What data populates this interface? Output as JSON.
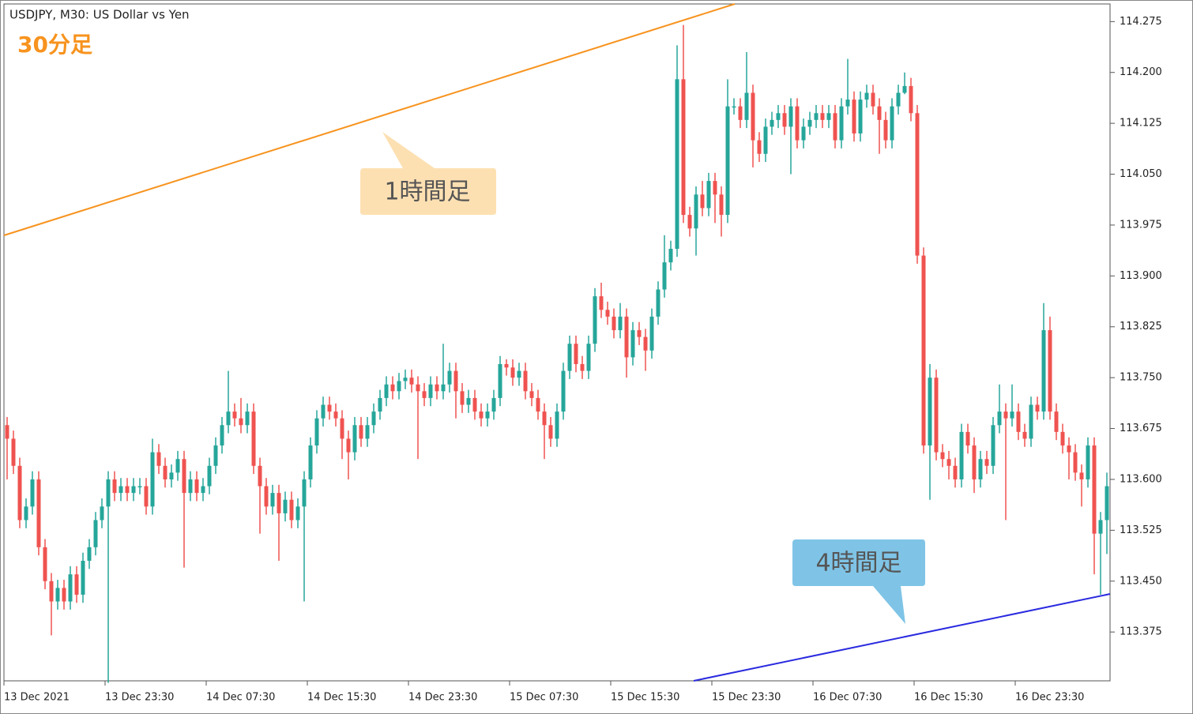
{
  "chart_data": {
    "type": "candlestick",
    "title": "USDJPY, M30:  US Dollar vs Yen",
    "subtitle": "30分足",
    "annotations": [
      "1時間足",
      "4時間足"
    ],
    "up_color": "#26a69a",
    "down_color": "#ef5350",
    "ylim": [
      113.303,
      114.301
    ],
    "yticks": [
      113.375,
      {
        "value": 113.45,
        "label": "113.450"
      },
      113.525,
      {
        "value": 113.6,
        "label": "113.600"
      },
      113.675,
      {
        "value": 113.75,
        "label": "113.750"
      },
      113.825,
      {
        "value": 113.9,
        "label": "113.900"
      },
      113.975,
      {
        "value": 114.05,
        "label": "114.050"
      },
      114.125,
      {
        "value": 114.2,
        "label": "114.200"
      },
      114.275
    ],
    "categories": [
      "13 Dec 2021",
      null,
      null,
      null,
      null,
      null,
      null,
      null,
      null,
      null,
      null,
      null,
      null,
      null,
      null,
      null,
      "13 Dec 23:30",
      null,
      null,
      null,
      null,
      null,
      null,
      null,
      null,
      null,
      null,
      null,
      null,
      null,
      null,
      null,
      "14 Dec 07:30",
      null,
      null,
      null,
      null,
      null,
      null,
      null,
      null,
      null,
      null,
      null,
      null,
      null,
      null,
      null,
      "14 Dec 15:30",
      null,
      null,
      null,
      null,
      null,
      null,
      null,
      null,
      null,
      null,
      null,
      null,
      null,
      null,
      null,
      "14 Dec 23:30",
      null,
      null,
      null,
      null,
      null,
      null,
      null,
      null,
      null,
      null,
      null,
      null,
      null,
      null,
      null,
      "15 Dec 07:30",
      null,
      null,
      null,
      null,
      null,
      null,
      null,
      null,
      null,
      null,
      null,
      null,
      null,
      null,
      null,
      "15 Dec 15:30",
      null,
      null,
      null,
      null,
      null,
      null,
      null,
      null,
      null,
      null,
      null,
      null,
      null,
      null,
      null,
      "15 Dec 23:30",
      null,
      null,
      null,
      null,
      null,
      null,
      null,
      null,
      null,
      null,
      null,
      null,
      null,
      null,
      null,
      "16 Dec 07:30",
      null,
      null,
      null,
      null,
      null,
      null,
      null,
      null,
      null,
      null,
      null,
      null,
      null,
      null,
      null,
      "16 Dec 15:30",
      null,
      null,
      null,
      null,
      null,
      null,
      null,
      null,
      null,
      null,
      null,
      null,
      null,
      null,
      null,
      "16 Dec 23:30",
      null,
      null,
      null,
      null,
      null,
      null,
      null,
      null,
      null,
      null,
      null,
      null,
      null,
      null
    ],
    "open": [
      113.68,
      113.66,
      113.62,
      113.54,
      113.56,
      113.6,
      113.5,
      113.45,
      113.42,
      113.44,
      113.42,
      113.46,
      113.43,
      113.48,
      113.5,
      113.54,
      113.56,
      113.6,
      113.58,
      113.59,
      113.58,
      113.59,
      113.59,
      113.56,
      113.64,
      113.62,
      113.6,
      113.61,
      113.63,
      113.58,
      113.6,
      113.58,
      113.59,
      113.62,
      113.65,
      113.68,
      113.7,
      113.69,
      113.68,
      113.7,
      113.62,
      113.59,
      113.56,
      113.58,
      113.55,
      113.57,
      113.54,
      113.56,
      113.6,
      113.65,
      113.69,
      113.71,
      113.7,
      113.69,
      113.66,
      113.64,
      113.68,
      113.66,
      113.68,
      113.7,
      113.72,
      113.74,
      113.73,
      113.745,
      113.75,
      113.74,
      113.73,
      113.72,
      113.74,
      113.73,
      113.74,
      113.76,
      113.73,
      113.71,
      113.72,
      113.7,
      113.69,
      113.7,
      113.72,
      113.77,
      113.765,
      113.75,
      113.76,
      113.73,
      113.72,
      113.7,
      113.68,
      113.66,
      113.7,
      113.76,
      113.8,
      113.77,
      113.76,
      113.8,
      113.87,
      113.85,
      113.84,
      113.82,
      113.84,
      113.78,
      113.82,
      113.81,
      113.79,
      113.84,
      113.88,
      113.92,
      113.94,
      114.19,
      113.99,
      113.97,
      114.02,
      114.0,
      114.04,
      114.02,
      113.99,
      114.15,
      114.15,
      114.13,
      114.17,
      114.1,
      114.08,
      114.12,
      114.13,
      114.14,
      114.12,
      114.15,
      114.1,
      114.12,
      114.13,
      114.14,
      114.13,
      114.14,
      114.1,
      114.15,
      114.16,
      114.11,
      114.16,
      114.17,
      114.15,
      114.13,
      114.1,
      114.15,
      114.17,
      114.18,
      114.14,
      113.93,
      113.65,
      113.75,
      113.64,
      113.63,
      113.62,
      113.6,
      113.67,
      113.65,
      113.6,
      113.63,
      113.62,
      113.68,
      113.7,
      113.69,
      113.7,
      113.67,
      113.66,
      113.71,
      113.7,
      113.82,
      113.7,
      113.67,
      113.65,
      113.64,
      113.61,
      113.6,
      113.65,
      113.52,
      113.54
    ],
    "high": [
      113.692,
      113.672,
      113.632,
      113.572,
      113.612,
      113.612,
      113.512,
      113.462,
      113.452,
      113.452,
      113.472,
      113.472,
      113.492,
      113.512,
      113.552,
      113.572,
      113.612,
      113.612,
      113.602,
      113.602,
      113.602,
      113.602,
      113.602,
      113.66,
      113.652,
      113.632,
      113.622,
      113.642,
      113.642,
      113.612,
      113.612,
      113.602,
      113.632,
      113.662,
      113.692,
      113.76,
      113.712,
      113.72,
      113.712,
      113.712,
      113.632,
      113.602,
      113.592,
      113.592,
      113.582,
      113.582,
      113.572,
      113.612,
      113.662,
      113.702,
      113.722,
      113.722,
      113.712,
      113.702,
      113.672,
      113.692,
      113.692,
      113.692,
      113.712,
      113.732,
      113.752,
      113.752,
      113.757,
      113.762,
      113.762,
      113.752,
      113.742,
      113.752,
      113.752,
      113.8,
      113.772,
      113.772,
      113.742,
      113.732,
      113.732,
      113.712,
      113.712,
      113.732,
      113.782,
      113.777,
      113.777,
      113.772,
      113.772,
      113.742,
      113.732,
      113.712,
      113.692,
      113.712,
      113.772,
      113.812,
      113.812,
      113.782,
      113.812,
      113.882,
      113.89,
      113.862,
      113.852,
      113.86,
      113.852,
      113.832,
      113.832,
      113.822,
      113.852,
      113.892,
      113.96,
      113.952,
      114.24,
      114.27,
      114.002,
      114.032,
      114.04,
      114.052,
      114.052,
      114.032,
      114.19,
      114.162,
      114.162,
      114.23,
      114.182,
      114.112,
      114.132,
      114.142,
      114.152,
      114.152,
      114.162,
      114.162,
      114.132,
      114.142,
      114.152,
      114.152,
      114.152,
      114.152,
      114.162,
      114.22,
      114.172,
      114.172,
      114.182,
      114.182,
      114.162,
      114.142,
      114.162,
      114.182,
      114.2,
      114.192,
      114.152,
      113.942,
      113.77,
      113.762,
      113.652,
      113.642,
      113.632,
      113.682,
      113.682,
      113.662,
      113.642,
      113.642,
      113.692,
      113.74,
      113.712,
      113.74,
      113.712,
      113.682,
      113.722,
      113.722,
      113.86,
      113.84,
      113.712,
      113.682,
      113.662,
      113.652,
      113.622,
      113.662,
      113.662,
      113.552,
      113.61
    ],
    "low": [
      113.6,
      113.608,
      113.528,
      113.528,
      113.548,
      113.488,
      113.438,
      113.37,
      113.408,
      113.408,
      113.408,
      113.418,
      113.418,
      113.468,
      113.488,
      113.528,
      113.3,
      113.568,
      113.568,
      113.568,
      113.568,
      113.578,
      113.548,
      113.548,
      113.608,
      113.588,
      113.588,
      113.598,
      113.47,
      113.568,
      113.568,
      113.568,
      113.578,
      113.608,
      113.638,
      113.668,
      113.678,
      113.668,
      113.668,
      113.608,
      113.52,
      113.548,
      113.548,
      113.48,
      113.538,
      113.528,
      113.528,
      113.42,
      113.588,
      113.638,
      113.678,
      113.688,
      113.678,
      113.63,
      113.6,
      113.628,
      113.648,
      113.648,
      113.668,
      113.688,
      113.708,
      113.718,
      113.718,
      113.733,
      113.728,
      113.63,
      113.708,
      113.708,
      113.718,
      113.718,
      113.728,
      113.69,
      113.698,
      113.698,
      113.688,
      113.678,
      113.678,
      113.688,
      113.708,
      113.753,
      113.738,
      113.738,
      113.718,
      113.708,
      113.688,
      113.63,
      113.648,
      113.648,
      113.688,
      113.748,
      113.758,
      113.748,
      113.748,
      113.788,
      113.838,
      113.828,
      113.808,
      113.808,
      113.75,
      113.768,
      113.798,
      113.76,
      113.778,
      113.828,
      113.868,
      113.908,
      113.928,
      113.978,
      113.958,
      113.93,
      113.988,
      113.988,
      113.978,
      113.958,
      113.978,
      114.138,
      114.118,
      114.118,
      114.06,
      114.068,
      114.068,
      114.108,
      114.118,
      114.108,
      114.05,
      114.088,
      114.088,
      114.108,
      114.118,
      114.118,
      114.118,
      114.088,
      114.088,
      114.138,
      114.098,
      114.098,
      114.148,
      114.138,
      114.08,
      114.088,
      114.088,
      114.138,
      114.168,
      114.128,
      113.918,
      113.638,
      113.57,
      113.628,
      113.618,
      113.6,
      113.588,
      113.588,
      113.638,
      113.58,
      113.588,
      113.608,
      113.608,
      113.668,
      113.54,
      113.678,
      113.658,
      113.648,
      113.648,
      113.688,
      113.688,
      113.688,
      113.658,
      113.638,
      113.6,
      113.598,
      113.56,
      113.588,
      113.46,
      113.43,
      113.49
    ],
    "close": [
      113.66,
      113.62,
      113.54,
      113.56,
      113.6,
      113.5,
      113.45,
      113.42,
      113.44,
      113.42,
      113.46,
      113.43,
      113.48,
      113.5,
      113.54,
      113.56,
      113.6,
      113.58,
      113.59,
      113.58,
      113.59,
      113.59,
      113.56,
      113.64,
      113.62,
      113.6,
      113.61,
      113.63,
      113.58,
      113.6,
      113.58,
      113.59,
      113.62,
      113.65,
      113.68,
      113.7,
      113.69,
      113.68,
      113.7,
      113.62,
      113.59,
      113.56,
      113.58,
      113.55,
      113.57,
      113.54,
      113.56,
      113.6,
      113.65,
      113.69,
      113.71,
      113.7,
      113.69,
      113.66,
      113.64,
      113.68,
      113.66,
      113.68,
      113.7,
      113.72,
      113.74,
      113.73,
      113.745,
      113.75,
      113.74,
      113.73,
      113.72,
      113.74,
      113.73,
      113.74,
      113.76,
      113.73,
      113.71,
      113.72,
      113.7,
      113.69,
      113.7,
      113.72,
      113.77,
      113.765,
      113.75,
      113.76,
      113.73,
      113.72,
      113.7,
      113.68,
      113.66,
      113.7,
      113.76,
      113.8,
      113.77,
      113.76,
      113.8,
      113.87,
      113.85,
      113.84,
      113.82,
      113.84,
      113.78,
      113.82,
      113.81,
      113.79,
      113.84,
      113.88,
      113.92,
      113.94,
      114.19,
      113.99,
      113.97,
      114.02,
      114.0,
      114.04,
      114.02,
      113.99,
      114.15,
      114.15,
      114.13,
      114.17,
      114.1,
      114.08,
      114.12,
      114.13,
      114.14,
      114.12,
      114.15,
      114.1,
      114.12,
      114.13,
      114.14,
      114.13,
      114.14,
      114.1,
      114.15,
      114.16,
      114.11,
      114.16,
      114.17,
      114.15,
      114.13,
      114.1,
      114.15,
      114.17,
      114.18,
      114.14,
      113.93,
      113.65,
      113.75,
      113.64,
      113.63,
      113.62,
      113.6,
      113.67,
      113.65,
      113.6,
      113.63,
      113.62,
      113.68,
      113.7,
      113.69,
      113.7,
      113.67,
      113.66,
      113.71,
      113.7,
      113.82,
      113.7,
      113.67,
      113.65,
      113.64,
      113.61,
      113.6,
      113.65,
      113.52,
      113.54,
      113.59
    ]
  }
}
